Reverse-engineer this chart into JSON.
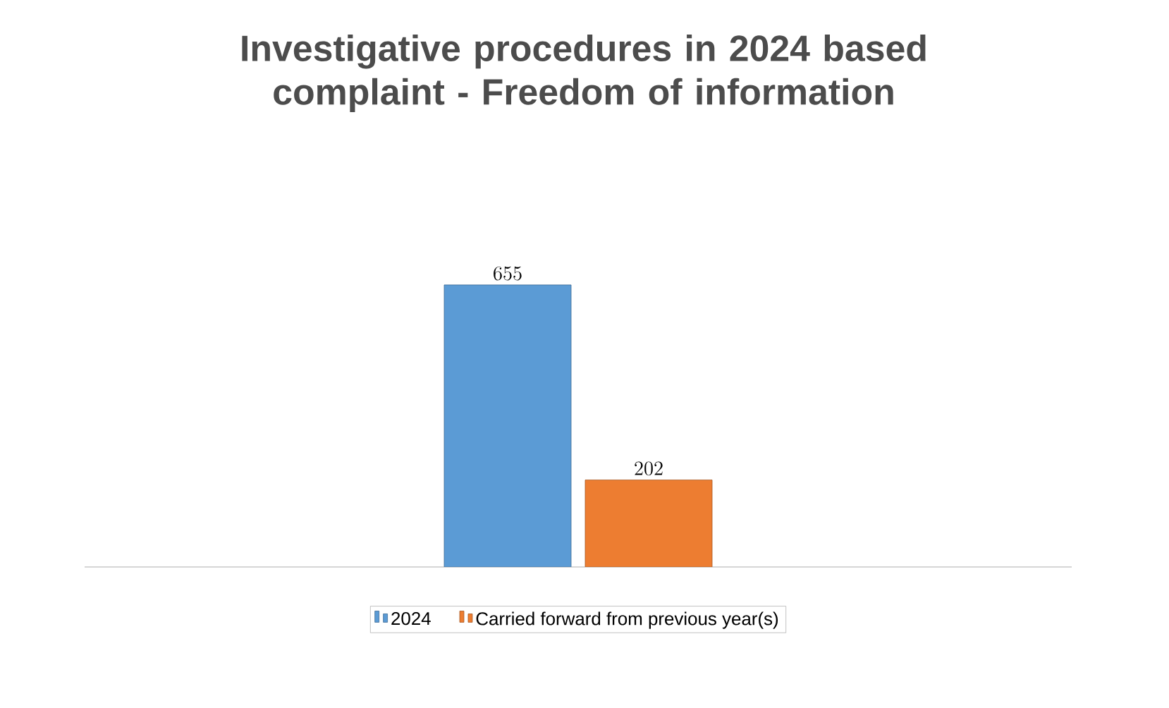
{
  "chart_data": {
    "type": "bar",
    "title": "Investigative procedures in 2024 based complaint - Freedom of information",
    "categories": [
      null
    ],
    "series": [
      {
        "name": "2024",
        "color": "#5b9bd5",
        "values": [
          655
        ]
      },
      {
        "name": "Carried forward from previous year(s)",
        "color": "#ed7d31",
        "values": [
          202
        ]
      }
    ],
    "data_labels": true,
    "legend": "bottom"
  }
}
